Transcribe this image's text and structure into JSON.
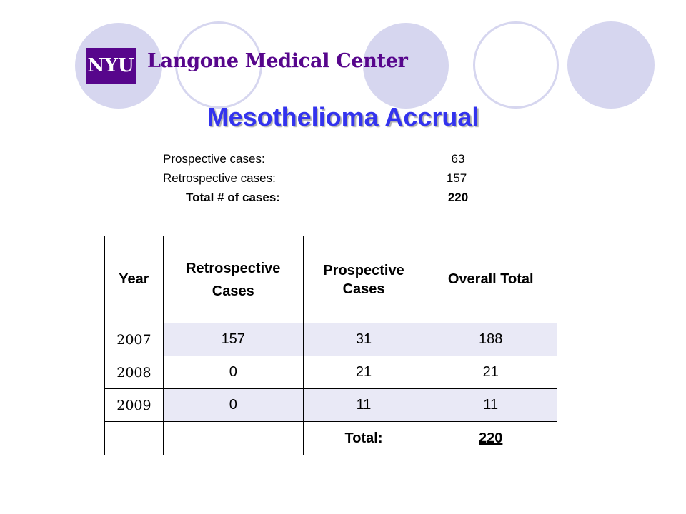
{
  "logo": {
    "badge": "NYU",
    "name": "Langone Medical Center"
  },
  "title": "Mesothelioma Accrual",
  "summary": [
    {
      "label": "Prospective cases:",
      "value": "63"
    },
    {
      "label": "Retrospective cases:",
      "value": "157"
    },
    {
      "label": "Total # of cases:",
      "value": "220"
    }
  ],
  "table": {
    "headers": {
      "year": "Year",
      "retro_line1": "Retrospective",
      "retro_line2": "Cases",
      "prosp_line1": "Prospective",
      "prosp_line2": "Cases",
      "overall": "Overall Total"
    },
    "rows": [
      {
        "year": "2007",
        "retro": "157",
        "prosp": "31",
        "total": "188"
      },
      {
        "year": "2008",
        "retro": "0",
        "prosp": "21",
        "total": "21"
      },
      {
        "year": "2009",
        "retro": "0",
        "prosp": "11",
        "total": "11"
      }
    ],
    "total_label": "Total:",
    "total_value": "220"
  },
  "colors": {
    "brand_purple": "#57068c",
    "title_blue": "#3333ee",
    "circle_lavender": "#d6d6ef",
    "row_shade": "#e9e9f6"
  }
}
